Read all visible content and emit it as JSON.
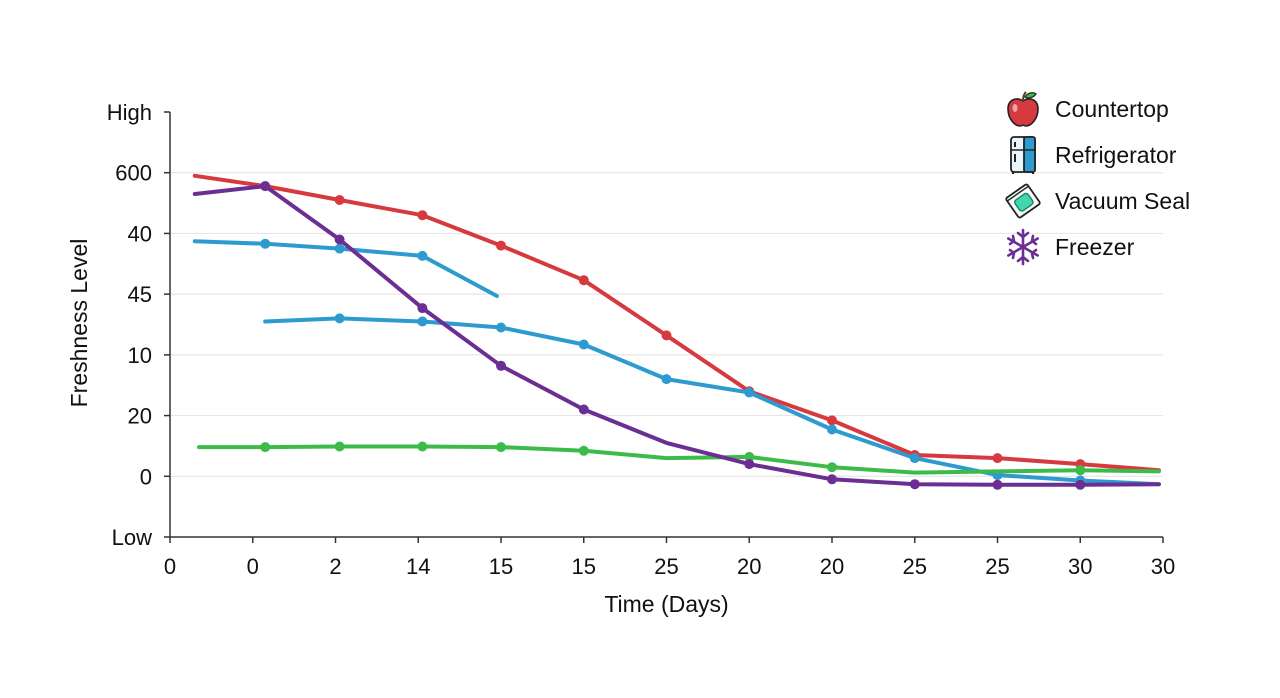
{
  "chart_data": {
    "type": "line",
    "xlabel": "Time (Days)",
    "ylabel": "Freshness Level",
    "x_tick_labels": [
      "0",
      "0",
      "2",
      "14",
      "15",
      "15",
      "25",
      "20",
      "20",
      "25",
      "25",
      "30",
      "30"
    ],
    "y_tick_labels": [
      "Low",
      "0",
      "20",
      "10",
      "45",
      "40",
      "600",
      "High"
    ],
    "grid": "horizontal",
    "legend_position": "top-right",
    "series": [
      {
        "name": "Countertop",
        "color": "#d63a3f",
        "icon": "apple-icon",
        "segments": [
          [
            [
              0.3,
              5.95
            ],
            [
              1.15,
              5.78
            ],
            [
              2.05,
              5.55
            ],
            [
              3.05,
              5.3
            ],
            [
              4.0,
              4.8
            ],
            [
              5.0,
              4.23
            ],
            [
              6.0,
              3.32
            ],
            [
              7.0,
              2.4
            ],
            [
              8.0,
              1.92
            ],
            [
              9.0,
              1.35
            ],
            [
              10.0,
              1.3
            ],
            [
              11.0,
              1.2
            ],
            [
              11.95,
              1.1
            ]
          ]
        ],
        "markers": [
          1.15,
          2.05,
          3.05,
          4.0,
          5.0,
          6.0,
          7.0,
          8.0,
          9.0,
          10.0,
          11.0
        ]
      },
      {
        "name": "Refrigerator",
        "color": "#2e9bd0",
        "icon": "refrigerator-icon",
        "segments": [
          [
            [
              0.3,
              4.87
            ],
            [
              1.15,
              4.83
            ],
            [
              2.05,
              4.75
            ],
            [
              3.05,
              4.63
            ],
            [
              3.95,
              3.97
            ]
          ],
          [
            [
              1.15,
              3.55
            ],
            [
              2.05,
              3.6
            ],
            [
              3.05,
              3.55
            ],
            [
              4.0,
              3.45
            ],
            [
              5.0,
              3.17
            ],
            [
              6.0,
              2.6
            ],
            [
              7.0,
              2.38
            ],
            [
              8.0,
              1.77
            ],
            [
              9.0,
              1.3
            ],
            [
              10.0,
              1.02
            ],
            [
              11.0,
              0.93
            ],
            [
              11.95,
              0.87
            ]
          ]
        ],
        "markers": [
          1.15,
          2.05,
          3.05,
          2.05,
          3.05,
          4.0,
          5.0,
          6.0,
          7.0,
          8.0,
          9.0,
          10.0,
          11.0
        ]
      },
      {
        "name": "Vacuum Seal",
        "color": "#3dbb4a",
        "icon": "vacuum-seal-icon",
        "segments": [
          [
            [
              0.35,
              1.48
            ],
            [
              1.15,
              1.48
            ],
            [
              2.05,
              1.49
            ],
            [
              3.05,
              1.49
            ],
            [
              4.0,
              1.48
            ],
            [
              5.0,
              1.42
            ],
            [
              6.0,
              1.3
            ],
            [
              7.0,
              1.32
            ],
            [
              8.0,
              1.15
            ],
            [
              9.0,
              1.06
            ],
            [
              10.0,
              1.08
            ],
            [
              11.0,
              1.1
            ],
            [
              11.95,
              1.08
            ]
          ]
        ],
        "markers": [
          1.15,
          2.05,
          3.05,
          4.0,
          5.0,
          7.0,
          8.0,
          11.0
        ]
      },
      {
        "name": "Freezer",
        "color": "#6b2e92",
        "icon": "snowflake-icon",
        "segments": [
          [
            [
              0.3,
              5.65
            ],
            [
              1.15,
              5.78
            ],
            [
              2.05,
              4.9
            ],
            [
              3.05,
              3.77
            ],
            [
              4.0,
              2.82
            ],
            [
              5.0,
              2.1
            ],
            [
              6.0,
              1.55
            ],
            [
              7.0,
              1.2
            ],
            [
              8.0,
              0.95
            ],
            [
              9.0,
              0.87
            ],
            [
              10.0,
              0.86
            ],
            [
              11.0,
              0.86
            ],
            [
              11.95,
              0.87
            ]
          ]
        ],
        "markers": [
          1.15,
          2.05,
          3.05,
          4.0,
          5.0,
          7.0,
          8.0,
          9.0,
          10.0,
          11.0
        ]
      }
    ]
  }
}
